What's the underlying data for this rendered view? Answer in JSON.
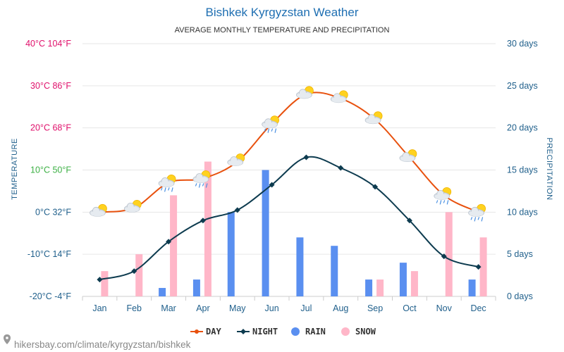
{
  "header": {
    "title": "Bishkek Kyrgyzstan Weather",
    "subtitle": "AVERAGE MONTHLY TEMPERATURE AND PRECIPITATION"
  },
  "footer": {
    "url": "hikersbay.com/climate/kyrgyzstan/bishkek"
  },
  "axes": {
    "left_title": "TEMPERATURE",
    "right_title": "PRECIPITATION",
    "left_ticks": [
      {
        "label": "40°C 104°F",
        "value": 40,
        "color": "#e0106b"
      },
      {
        "label": "30°C 86°F",
        "value": 30,
        "color": "#e0106b"
      },
      {
        "label": "20°C 68°F",
        "value": 20,
        "color": "#e0106b"
      },
      {
        "label": "10°C 50°F",
        "value": 10,
        "color": "#3cb044"
      },
      {
        "label": "0°C 32°F",
        "value": 0,
        "color": "#1f5f8b"
      },
      {
        "label": "-10°C 14°F",
        "value": -10,
        "color": "#1f5f8b"
      },
      {
        "label": "-20°C -4°F",
        "value": -20,
        "color": "#1f5f8b"
      }
    ],
    "right_ticks": [
      {
        "label": "30 days",
        "value": 30
      },
      {
        "label": "25 days",
        "value": 25
      },
      {
        "label": "20 days",
        "value": 20
      },
      {
        "label": "15 days",
        "value": 15
      },
      {
        "label": "10 days",
        "value": 10
      },
      {
        "label": "5 days",
        "value": 5
      },
      {
        "label": "0 days",
        "value": 0
      }
    ]
  },
  "legend": [
    {
      "key": "day",
      "label": "DAY",
      "color": "#e8510e",
      "shape": "line-dot"
    },
    {
      "key": "night",
      "label": "NIGHT",
      "color": "#0d3b4f",
      "shape": "line-diamond"
    },
    {
      "key": "rain",
      "label": "RAIN",
      "color": "#5a8ff0",
      "shape": "circle"
    },
    {
      "key": "snow",
      "label": "SNOW",
      "color": "#ffb6c8",
      "shape": "circle"
    }
  ],
  "colors": {
    "day": "#e8510e",
    "night": "#0d3b4f",
    "rain": "#5a8ff0",
    "snow": "#ffb6c8",
    "grid": "#e6e6e6"
  },
  "weather_icons": [
    "sun-cloud-icon",
    "sun-cloud-icon",
    "rain-cloud-icon",
    "rain-cloud-icon",
    "sun-cloud-icon",
    "rain-cloud-icon",
    "sun-cloud-icon",
    "sun-cloud-icon",
    "sun-cloud-icon",
    "sun-cloud-icon",
    "rain-cloud-icon",
    "rain-cloud-icon"
  ],
  "chart_data": {
    "type": "line",
    "categories": [
      "Jan",
      "Feb",
      "Mar",
      "Apr",
      "May",
      "Jun",
      "Jul",
      "Aug",
      "Sep",
      "Oct",
      "Nov",
      "Dec"
    ],
    "series": [
      {
        "name": "DAY",
        "axis": "temperature",
        "values": [
          0,
          1,
          7,
          8,
          12,
          21,
          28,
          27,
          22,
          13,
          4,
          0
        ]
      },
      {
        "name": "NIGHT",
        "axis": "temperature",
        "values": [
          -16,
          -14,
          -7,
          -2,
          0.5,
          6.5,
          13,
          10.5,
          6,
          -2,
          -10.5,
          -13
        ]
      },
      {
        "name": "RAIN",
        "axis": "precipitation",
        "type": "bar",
        "values": [
          0,
          0,
          1,
          2,
          10,
          15,
          7,
          6,
          2,
          4,
          0,
          2
        ]
      },
      {
        "name": "SNOW",
        "axis": "precipitation",
        "type": "bar",
        "values": [
          3,
          5,
          12,
          16,
          0,
          0,
          0,
          0,
          2,
          3,
          10,
          7
        ]
      }
    ],
    "ylim_temperature": [
      -20,
      40
    ],
    "ylim_precipitation": [
      0,
      30
    ],
    "grid": true,
    "legend_position": "bottom-center"
  }
}
